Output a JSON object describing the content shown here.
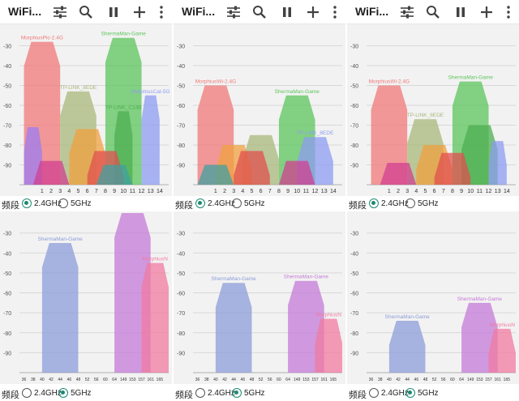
{
  "app": {
    "title": "WiFi..."
  },
  "band_label": "频段",
  "band_options": [
    "2.4GHz",
    "5GHz"
  ],
  "icons": [
    "tune-icon",
    "search-icon",
    "pause-icon",
    "add-icon",
    "more-vert-icon"
  ],
  "y_ticks": [
    "-30",
    "-40",
    "-50",
    "-60",
    "-70",
    "-80",
    "-90"
  ],
  "x_ticks_24": [
    "1",
    "2",
    "3",
    "4",
    "5",
    "6",
    "7",
    "8",
    "9",
    "10",
    "11",
    "12",
    "13",
    "14"
  ],
  "x_ticks_5": [
    "36",
    "38",
    "40",
    "42",
    "44",
    "46",
    "48",
    "52",
    "56",
    "60",
    "64",
    "149",
    "153",
    "157",
    "161",
    "165"
  ],
  "panels": [
    {
      "band_24_selected": true,
      "band_5_selected": true,
      "chart_24": {
        "networks": [
          {
            "ssid": "MorphiusPic-2.4G",
            "color": "#f07878",
            "signal": -28,
            "ch_lo": -1,
            "ch_hi": 3
          },
          {
            "ssid": "ShermaMan-Game",
            "color": "#5cc45c",
            "signal": -26,
            "ch_lo": 8,
            "ch_hi": 12
          },
          {
            "ssid": "TP-LINK_8EDE",
            "color": "#a8b87a",
            "signal": -53,
            "ch_lo": 3,
            "ch_hi": 7
          },
          {
            "ssid": "MorphiusCat-5G",
            "color": "#8c9cf0",
            "signal": -55,
            "ch_lo": 12,
            "ch_hi": 14
          },
          {
            "ssid": "TP-LINK_C14B",
            "color": "#4caf50",
            "signal": -63,
            "ch_lo": 9,
            "ch_hi": 11
          },
          {
            "ssid": "",
            "color": "#f0a040",
            "signal": -72,
            "ch_lo": 4,
            "ch_hi": 8
          },
          {
            "ssid": "",
            "color": "#9c7cf0",
            "signal": -71,
            "ch_lo": -1,
            "ch_hi": 1
          },
          {
            "ssid": "",
            "color": "#e05050",
            "signal": -83,
            "ch_lo": 6,
            "ch_hi": 10
          },
          {
            "ssid": "",
            "color": "#d04090",
            "signal": -88,
            "ch_lo": 0,
            "ch_hi": 4
          },
          {
            "ssid": "",
            "color": "#40a0a0",
            "signal": -90,
            "ch_lo": 7,
            "ch_hi": 11
          }
        ]
      },
      "chart_5": {
        "networks": [
          {
            "ssid": "ShermaMan-Game",
            "color": "#8c9cd8",
            "signal": -35,
            "ch_lo": 2,
            "ch_hi": 6
          },
          {
            "ssid": "ShermaMan-Game",
            "color": "#c47ad8",
            "signal": -20,
            "ch_lo": 10,
            "ch_hi": 14
          },
          {
            "ssid": "MorphiusN",
            "color": "#f07ba0",
            "signal": -45,
            "ch_lo": 13,
            "ch_hi": 16
          }
        ]
      }
    },
    {
      "band_24_selected": true,
      "band_5_selected": true,
      "chart_24": {
        "networks": [
          {
            "ssid": "MorphiusWi-2.4G",
            "color": "#f07878",
            "signal": -50,
            "ch_lo": -1,
            "ch_hi": 3
          },
          {
            "ssid": "ShermaMan-Game",
            "color": "#5cc45c",
            "signal": -55,
            "ch_lo": 8,
            "ch_hi": 12
          },
          {
            "ssid": "",
            "color": "#a8b87a",
            "signal": -75,
            "ch_lo": 4,
            "ch_hi": 8
          },
          {
            "ssid": "TP-LINK_8EDE",
            "color": "#8c9cf0",
            "signal": -76,
            "ch_lo": 10,
            "ch_hi": 14
          },
          {
            "ssid": "",
            "color": "#f0a040",
            "signal": -80,
            "ch_lo": 1,
            "ch_hi": 5
          },
          {
            "ssid": "",
            "color": "#e05050",
            "signal": -83,
            "ch_lo": 3,
            "ch_hi": 7
          },
          {
            "ssid": "",
            "color": "#d04090",
            "signal": -88,
            "ch_lo": 8,
            "ch_hi": 12
          },
          {
            "ssid": "",
            "color": "#40a0a0",
            "signal": -90,
            "ch_lo": -1,
            "ch_hi": 3
          }
        ]
      },
      "chart_5": {
        "networks": [
          {
            "ssid": "ShermaMan-Game",
            "color": "#8c9cd8",
            "signal": -55,
            "ch_lo": 2,
            "ch_hi": 6
          },
          {
            "ssid": "ShermaMan-Game",
            "color": "#c47ad8",
            "signal": -54,
            "ch_lo": 10,
            "ch_hi": 14
          },
          {
            "ssid": "MorphiusN",
            "color": "#f07ba0",
            "signal": -73,
            "ch_lo": 13,
            "ch_hi": 16
          }
        ]
      }
    },
    {
      "band_24_selected": true,
      "band_5_selected": true,
      "chart_24": {
        "networks": [
          {
            "ssid": "MorphiusWi-2.4G",
            "color": "#f07878",
            "signal": -50,
            "ch_lo": -1,
            "ch_hi": 3
          },
          {
            "ssid": "ShermaMan-Game",
            "color": "#5cc45c",
            "signal": -48,
            "ch_lo": 8,
            "ch_hi": 12
          },
          {
            "ssid": "TP-LINK_8EDE",
            "color": "#a8b87a",
            "signal": -67,
            "ch_lo": 3,
            "ch_hi": 7
          },
          {
            "ssid": "",
            "color": "#4caf50",
            "signal": -70,
            "ch_lo": 9,
            "ch_hi": 13
          },
          {
            "ssid": "",
            "color": "#8c9cf0",
            "signal": -78,
            "ch_lo": 12,
            "ch_hi": 14
          },
          {
            "ssid": "",
            "color": "#f0a040",
            "signal": -80,
            "ch_lo": 4,
            "ch_hi": 8
          },
          {
            "ssid": "",
            "color": "#e05050",
            "signal": -84,
            "ch_lo": 6,
            "ch_hi": 10
          },
          {
            "ssid": "",
            "color": "#d04090",
            "signal": -89,
            "ch_lo": 0,
            "ch_hi": 4
          }
        ]
      },
      "chart_5": {
        "networks": [
          {
            "ssid": "ShermaMan-Game",
            "color": "#8c9cd8",
            "signal": -74,
            "ch_lo": 2,
            "ch_hi": 6
          },
          {
            "ssid": "ShermaMan-Game",
            "color": "#c47ad8",
            "signal": -65,
            "ch_lo": 10,
            "ch_hi": 14
          },
          {
            "ssid": "MorphiusN",
            "color": "#f07ba0",
            "signal": -78,
            "ch_lo": 13,
            "ch_hi": 16
          }
        ]
      }
    }
  ]
}
